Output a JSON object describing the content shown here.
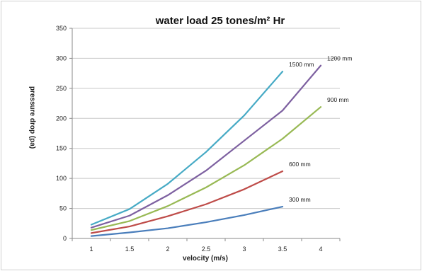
{
  "chart_data": {
    "type": "line",
    "title": "water load 25 tones/m² Hr",
    "xlabel": "velocity (m/s)",
    "ylabel": "pressure drop (pa)",
    "categories": [
      "1",
      "1.5",
      "2",
      "2.5",
      "3",
      "3.5",
      "4"
    ],
    "ylim": [
      0,
      350
    ],
    "yticks": [
      0,
      50,
      100,
      150,
      200,
      250,
      300,
      350
    ],
    "grid": true,
    "legend": "labels at line ends",
    "series": [
      {
        "name": "300 mm",
        "color": "#4a7ebb",
        "values": [
          4,
          10,
          17,
          27,
          39,
          53,
          null
        ]
      },
      {
        "name": "600 mm",
        "color": "#be4b48",
        "values": [
          9,
          20,
          37,
          57,
          82,
          112,
          null
        ]
      },
      {
        "name": "900 mm",
        "color": "#98b954",
        "values": [
          14,
          29,
          54,
          85,
          122,
          166,
          219
        ]
      },
      {
        "name": "1200 mm",
        "color": "#7d60a0",
        "values": [
          18,
          38,
          72,
          113,
          163,
          213,
          288
        ]
      },
      {
        "name": "1500 mm",
        "color": "#46aac5",
        "values": [
          23,
          49,
          91,
          144,
          205,
          278,
          null
        ]
      }
    ]
  }
}
